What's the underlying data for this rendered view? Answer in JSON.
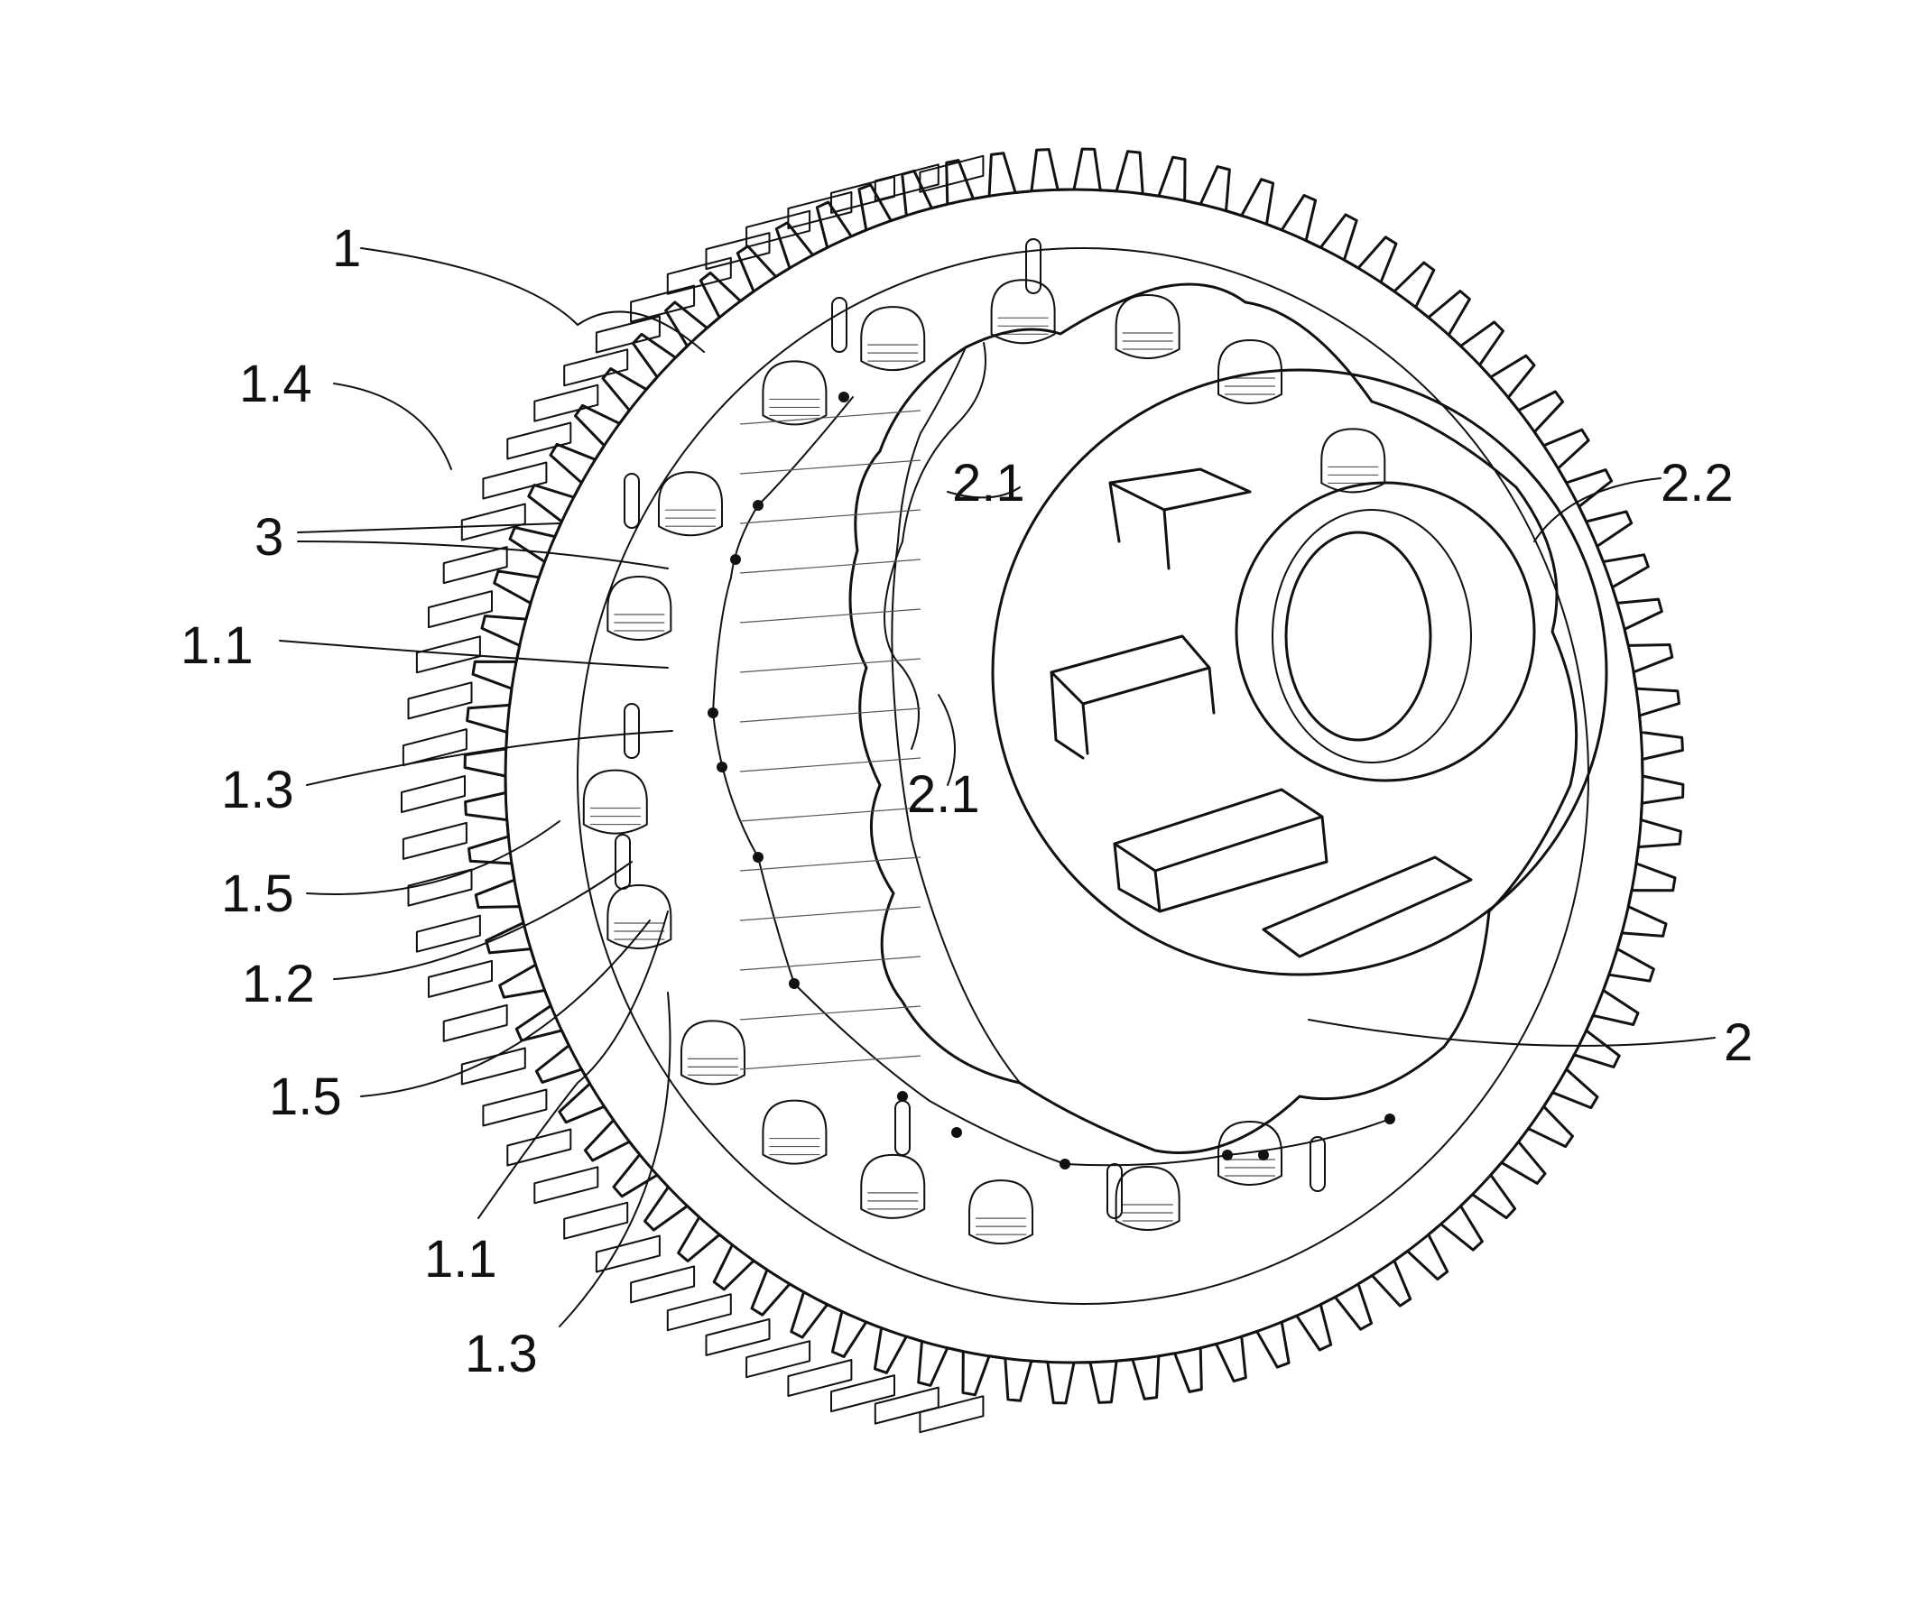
{
  "figure": {
    "labels": {
      "l_1": "1",
      "l_1_4": "1.4",
      "l_3": "3",
      "l_1_1_a": "1.1",
      "l_1_3_a": "1.3",
      "l_1_5_a": "1.5",
      "l_1_2": "1.2",
      "l_1_5_b": "1.5",
      "l_1_1_b": "1.1",
      "l_1_3_b": "1.3",
      "l_2_1_a": "2.1",
      "l_2_1_b": "2.1",
      "l_2_2": "2.2",
      "l_2": "2"
    }
  }
}
